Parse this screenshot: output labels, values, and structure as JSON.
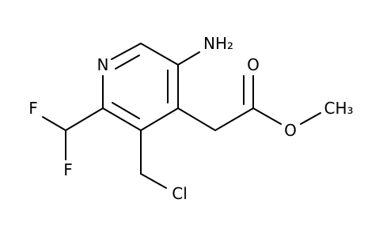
{
  "atoms": {
    "n_ring": "N",
    "amino": "NH₂",
    "carbonyl_o": "O",
    "ester_o": "O",
    "methyl": "CH₃",
    "f1": "F",
    "f2": "F",
    "cl": "Cl"
  }
}
